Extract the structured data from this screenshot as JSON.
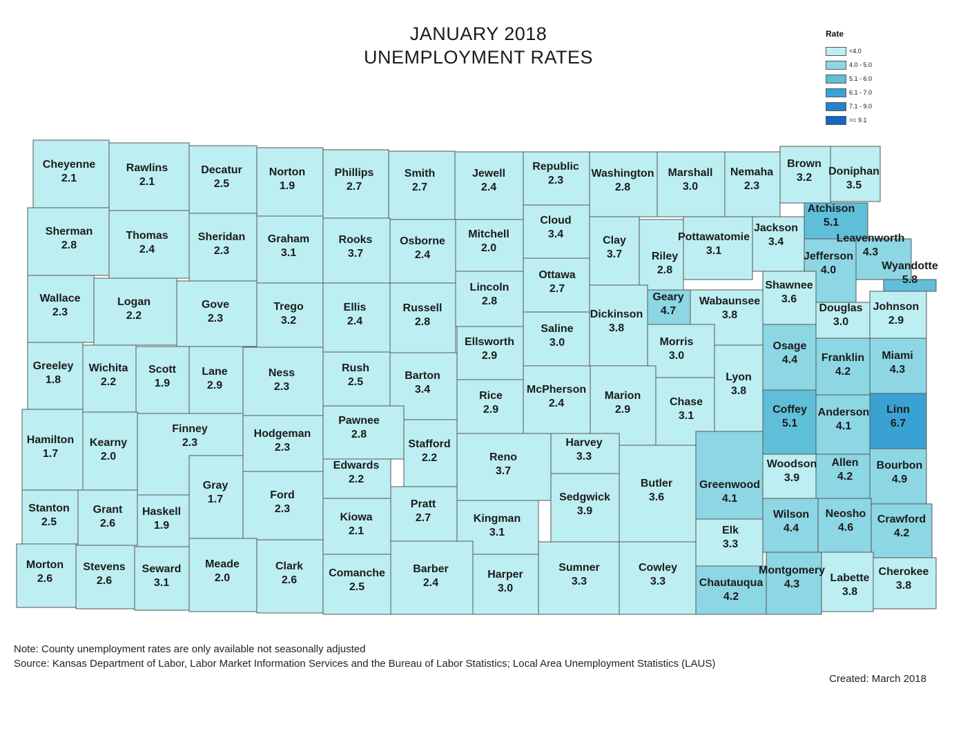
{
  "title_line1": "JANUARY 2018",
  "title_line2": "UNEMPLOYMENT RATES",
  "legend": {
    "title": "Rate",
    "items": [
      {
        "label": "<4.0",
        "color": "#bdeef2"
      },
      {
        "label": "4.0 - 5.0",
        "color": "#8dd6e3"
      },
      {
        "label": "5.1 - 6.0",
        "color": "#5fbfd9"
      },
      {
        "label": "6.1 - 7.0",
        "color": "#3aa2d2"
      },
      {
        "label": "7.1 - 9.0",
        "color": "#2383cc"
      },
      {
        "label": ">= 9.1",
        "color": "#1466c2"
      }
    ]
  },
  "counties": [
    {
      "name": "Cheyenne",
      "rate": 2.1
    },
    {
      "name": "Rawlins",
      "rate": 2.1
    },
    {
      "name": "Decatur",
      "rate": 2.5
    },
    {
      "name": "Norton",
      "rate": 1.9
    },
    {
      "name": "Phillips",
      "rate": 2.7
    },
    {
      "name": "Smith",
      "rate": 2.7
    },
    {
      "name": "Jewell",
      "rate": 2.4
    },
    {
      "name": "Republic",
      "rate": 2.3
    },
    {
      "name": "Washington",
      "rate": 2.8
    },
    {
      "name": "Marshall",
      "rate": 3.0
    },
    {
      "name": "Nemaha",
      "rate": 2.3
    },
    {
      "name": "Brown",
      "rate": 3.2
    },
    {
      "name": "Doniphan",
      "rate": 3.5
    },
    {
      "name": "Sherman",
      "rate": 2.8
    },
    {
      "name": "Thomas",
      "rate": 2.4
    },
    {
      "name": "Sheridan",
      "rate": 2.3
    },
    {
      "name": "Graham",
      "rate": 3.1
    },
    {
      "name": "Rooks",
      "rate": 3.7
    },
    {
      "name": "Osborne",
      "rate": 2.4
    },
    {
      "name": "Mitchell",
      "rate": 2.0
    },
    {
      "name": "Cloud",
      "rate": 3.4
    },
    {
      "name": "Clay",
      "rate": 3.7
    },
    {
      "name": "Riley",
      "rate": 2.8
    },
    {
      "name": "Pottawatomie",
      "rate": 3.1
    },
    {
      "name": "Jackson",
      "rate": 3.4
    },
    {
      "name": "Atchison",
      "rate": 5.1
    },
    {
      "name": "Jefferson",
      "rate": 4.0
    },
    {
      "name": "Leavenworth",
      "rate": 4.3
    },
    {
      "name": "Wyandotte",
      "rate": 5.8
    },
    {
      "name": "Wallace",
      "rate": 2.3
    },
    {
      "name": "Logan",
      "rate": 2.2
    },
    {
      "name": "Gove",
      "rate": 2.3
    },
    {
      "name": "Trego",
      "rate": 3.2
    },
    {
      "name": "Ellis",
      "rate": 2.4
    },
    {
      "name": "Russell",
      "rate": 2.8
    },
    {
      "name": "Lincoln",
      "rate": 2.8
    },
    {
      "name": "Ottawa",
      "rate": 2.7
    },
    {
      "name": "Dickinson",
      "rate": 3.8
    },
    {
      "name": "Geary",
      "rate": 4.7
    },
    {
      "name": "Wabaunsee",
      "rate": 3.8
    },
    {
      "name": "Shawnee",
      "rate": 3.6
    },
    {
      "name": "Douglas",
      "rate": 3.0
    },
    {
      "name": "Johnson",
      "rate": 2.9
    },
    {
      "name": "Greeley",
      "rate": 1.8
    },
    {
      "name": "Wichita",
      "rate": 2.2
    },
    {
      "name": "Scott",
      "rate": 1.9
    },
    {
      "name": "Lane",
      "rate": 2.9
    },
    {
      "name": "Ness",
      "rate": 2.3
    },
    {
      "name": "Rush",
      "rate": 2.5
    },
    {
      "name": "Barton",
      "rate": 3.4
    },
    {
      "name": "Ellsworth",
      "rate": 2.9
    },
    {
      "name": "Saline",
      "rate": 3.0
    },
    {
      "name": "Morris",
      "rate": 3.0
    },
    {
      "name": "Lyon",
      "rate": 3.8
    },
    {
      "name": "Osage",
      "rate": 4.4
    },
    {
      "name": "Franklin",
      "rate": 4.2
    },
    {
      "name": "Miami",
      "rate": 4.3
    },
    {
      "name": "Hamilton",
      "rate": 1.7
    },
    {
      "name": "Kearny",
      "rate": 2.0
    },
    {
      "name": "Finney",
      "rate": 2.3
    },
    {
      "name": "Hodgeman",
      "rate": 2.3
    },
    {
      "name": "Pawnee",
      "rate": 2.8
    },
    {
      "name": "Stafford",
      "rate": 2.2
    },
    {
      "name": "Rice",
      "rate": 2.9
    },
    {
      "name": "McPherson",
      "rate": 2.4
    },
    {
      "name": "Marion",
      "rate": 2.9
    },
    {
      "name": "Chase",
      "rate": 3.1
    },
    {
      "name": "Coffey",
      "rate": 5.1
    },
    {
      "name": "Anderson",
      "rate": 4.1
    },
    {
      "name": "Linn",
      "rate": 6.7
    },
    {
      "name": "Gray",
      "rate": 1.7
    },
    {
      "name": "Ford",
      "rate": 2.3
    },
    {
      "name": "Edwards",
      "rate": 2.2
    },
    {
      "name": "Reno",
      "rate": 3.7
    },
    {
      "name": "Harvey",
      "rate": 3.3
    },
    {
      "name": "Butler",
      "rate": 3.6
    },
    {
      "name": "Greenwood",
      "rate": 4.1
    },
    {
      "name": "Woodson",
      "rate": 3.9
    },
    {
      "name": "Allen",
      "rate": 4.2
    },
    {
      "name": "Bourbon",
      "rate": 4.9
    },
    {
      "name": "Stanton",
      "rate": 2.5
    },
    {
      "name": "Grant",
      "rate": 2.6
    },
    {
      "name": "Haskell",
      "rate": 1.9
    },
    {
      "name": "Kiowa",
      "rate": 2.1
    },
    {
      "name": "Pratt",
      "rate": 2.7
    },
    {
      "name": "Kingman",
      "rate": 3.1
    },
    {
      "name": "Sedgwick",
      "rate": 3.9
    },
    {
      "name": "Elk",
      "rate": 3.3
    },
    {
      "name": "Wilson",
      "rate": 4.4
    },
    {
      "name": "Neosho",
      "rate": 4.6
    },
    {
      "name": "Crawford",
      "rate": 4.2
    },
    {
      "name": "Morton",
      "rate": 2.6
    },
    {
      "name": "Stevens",
      "rate": 2.6
    },
    {
      "name": "Seward",
      "rate": 3.1
    },
    {
      "name": "Meade",
      "rate": 2.0
    },
    {
      "name": "Clark",
      "rate": 2.6
    },
    {
      "name": "Comanche",
      "rate": 2.5
    },
    {
      "name": "Barber",
      "rate": 2.4
    },
    {
      "name": "Harper",
      "rate": 3.0
    },
    {
      "name": "Sumner",
      "rate": 3.3
    },
    {
      "name": "Cowley",
      "rate": 3.3
    },
    {
      "name": "Chautauqua",
      "rate": 4.2
    },
    {
      "name": "Montgomery",
      "rate": 4.3
    },
    {
      "name": "Labette",
      "rate": 3.8
    },
    {
      "name": "Cherokee",
      "rate": 3.8
    }
  ],
  "note": "Note: County unemployment rates are only available not seasonally adjusted",
  "source": "Source: Kansas Department of Labor, Labor Market Information Services and the Bureau of Labor Statistics; Local Area Unemployment Statistics (LAUS)",
  "created": "Created:  March 2018"
}
